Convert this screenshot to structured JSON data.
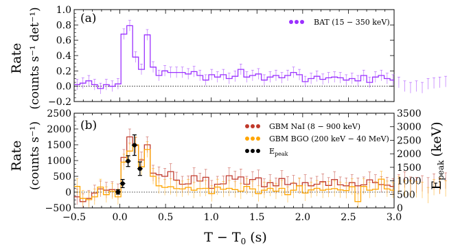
{
  "chart_data": [
    {
      "type": "line",
      "panel_label": "(a)",
      "ylabel_line1": "Rate",
      "ylabel_line2": "(counts s⁻¹ det⁻¹)",
      "xlim": [
        -0.5,
        3.0
      ],
      "ylim": [
        -0.2,
        1.0
      ],
      "yticks": [
        "−0.2",
        "0.0",
        "0.2",
        "0.4",
        "0.6",
        "0.8",
        "1.0"
      ],
      "legend_position": "top-right",
      "series": [
        {
          "name": "BAT (15 − 350 keV)",
          "color": "#9b30ff",
          "bin_width": 0.064,
          "x_start": -0.5,
          "values": [
            0.02,
            0.04,
            0.07,
            0.02,
            -0.03,
            0.02,
            0.0,
            0.03,
            0.68,
            0.79,
            0.38,
            0.22,
            0.67,
            0.25,
            0.14,
            0.2,
            0.18,
            0.18,
            0.18,
            0.16,
            0.19,
            0.14,
            0.08,
            0.15,
            0.12,
            0.15,
            0.1,
            0.13,
            0.22,
            0.12,
            0.14,
            0.16,
            0.08,
            0.12,
            0.14,
            0.11,
            0.14,
            0.18,
            0.15,
            0.06,
            0.1,
            0.13,
            0.09,
            0.11,
            0.12,
            0.11,
            0.08,
            0.1,
            0.07,
            0.14,
            0.05,
            0.12,
            0.14,
            0.1,
            0.08,
            0.05,
            0.0,
            -0.02,
            0.0,
            -0.02,
            0.03,
            0.04,
            0.05,
            0.06
          ],
          "error": 0.07
        }
      ]
    },
    {
      "type": "line",
      "panel_label": "(b)",
      "ylabel_line1": "Rate",
      "ylabel_line2": "(counts s⁻¹)",
      "ylabel_right": "E",
      "ylabel_right_sub": "peak",
      "ylabel_right_unit": "(keV)",
      "xlabel": "T − T",
      "xlabel_sub": "0",
      "xlabel_unit": "(s)",
      "xlim": [
        -0.5,
        3.0
      ],
      "ylim": [
        -500,
        2500
      ],
      "ylim_right": [
        0,
        3500
      ],
      "xticks": [
        "−0.5",
        "0.0",
        "0.5",
        "1.0",
        "1.5",
        "2.0",
        "2.5",
        "3.0"
      ],
      "yticks": [
        "−500",
        "0",
        "500",
        "1000",
        "1500",
        "2000",
        "2500"
      ],
      "yticks_right": [
        "0",
        "500",
        "1000",
        "1500",
        "2000",
        "2500",
        "3000",
        "3500"
      ],
      "legend_position": "top-right",
      "series": [
        {
          "name": "GBM NaI (8 − 900 keV)",
          "color": "#c0392b",
          "bin_width": 0.064,
          "x_start": -0.5,
          "values": [
            -150,
            -300,
            -200,
            -30,
            100,
            60,
            80,
            10,
            1100,
            1750,
            1480,
            1020,
            1500,
            600,
            550,
            500,
            650,
            380,
            250,
            260,
            520,
            350,
            470,
            120,
            250,
            260,
            520,
            410,
            480,
            250,
            400,
            450,
            170,
            300,
            200,
            430,
            240,
            280,
            200,
            300,
            200,
            250,
            330,
            210,
            400,
            230,
            200,
            300,
            200,
            230,
            390,
            300,
            240,
            220,
            180,
            310,
            390,
            230,
            220,
            270,
            210,
            330,
            190,
            360
          ],
          "error": 250
        },
        {
          "name": "GBM BGO (200 keV − 40 MeV)",
          "color": "#ffa500",
          "bin_width": 0.064,
          "x_start": -0.5,
          "values": [
            180,
            -200,
            -240,
            -150,
            160,
            -80,
            30,
            -150,
            950,
            1300,
            1500,
            800,
            1350,
            500,
            200,
            150,
            170,
            110,
            100,
            150,
            60,
            110,
            120,
            -50,
            160,
            90,
            120,
            80,
            30,
            180,
            100,
            -50,
            60,
            120,
            30,
            120,
            -80,
            60,
            200,
            -30,
            70,
            120,
            60,
            90,
            110,
            70,
            50,
            170,
            -300,
            180,
            60,
            90,
            410,
            100,
            60,
            250,
            120,
            120,
            80,
            60,
            -100,
            150,
            200,
            110
          ],
          "error": 250
        }
      ],
      "epeak": {
        "name": "E",
        "name_sub": "peak",
        "color": "#000000",
        "points": [
          {
            "x": -0.02,
            "y": 590,
            "xerr": 0.03,
            "yerr": 80
          },
          {
            "x": 0.03,
            "y": 900,
            "xerr": 0.03,
            "yerr": 150
          },
          {
            "x": 0.09,
            "y": 1730,
            "xerr": 0.03,
            "yerr": 200
          },
          {
            "x": 0.16,
            "y": 2320,
            "xerr": 0.03,
            "yerr": 380
          },
          {
            "x": 0.22,
            "y": 1450,
            "xerr": 0.03,
            "yerr": 250
          }
        ]
      }
    }
  ]
}
